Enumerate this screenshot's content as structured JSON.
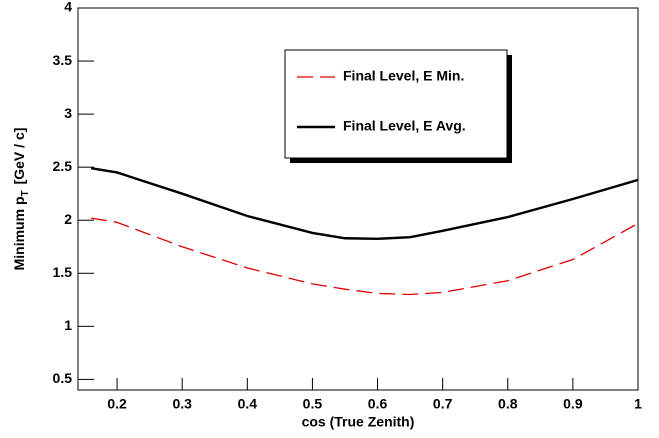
{
  "chart_data": {
    "type": "line",
    "x_label": "cos (True Zenith)",
    "y_label": {
      "main": "Minimum p",
      "sub": "T",
      "unit": "[GeV / c]"
    },
    "xlim": [
      0.14,
      1
    ],
    "ylim": [
      0.4,
      4
    ],
    "xticks": [
      0.2,
      0.3,
      0.4,
      0.5,
      0.6,
      0.7,
      0.8,
      0.9,
      1
    ],
    "yticks": [
      0.5,
      1,
      1.5,
      2,
      2.5,
      3,
      3.5,
      4
    ],
    "x": [
      0.16,
      0.2,
      0.3,
      0.4,
      0.5,
      0.55,
      0.6,
      0.65,
      0.7,
      0.8,
      0.9,
      1
    ],
    "series": [
      {
        "name": "Final Level, E Min.",
        "color": "#e00000",
        "dashed": true,
        "values": [
          2.02,
          1.98,
          1.75,
          1.55,
          1.4,
          1.35,
          1.31,
          1.3,
          1.32,
          1.43,
          1.63,
          1.97
        ]
      },
      {
        "name": "Final Level, E Avg.",
        "color": "#000000",
        "dashed": false,
        "values": [
          2.49,
          2.45,
          2.25,
          2.04,
          1.88,
          1.83,
          1.825,
          1.84,
          1.9,
          2.03,
          2.2,
          2.38
        ]
      }
    ],
    "legend": "top-center"
  }
}
